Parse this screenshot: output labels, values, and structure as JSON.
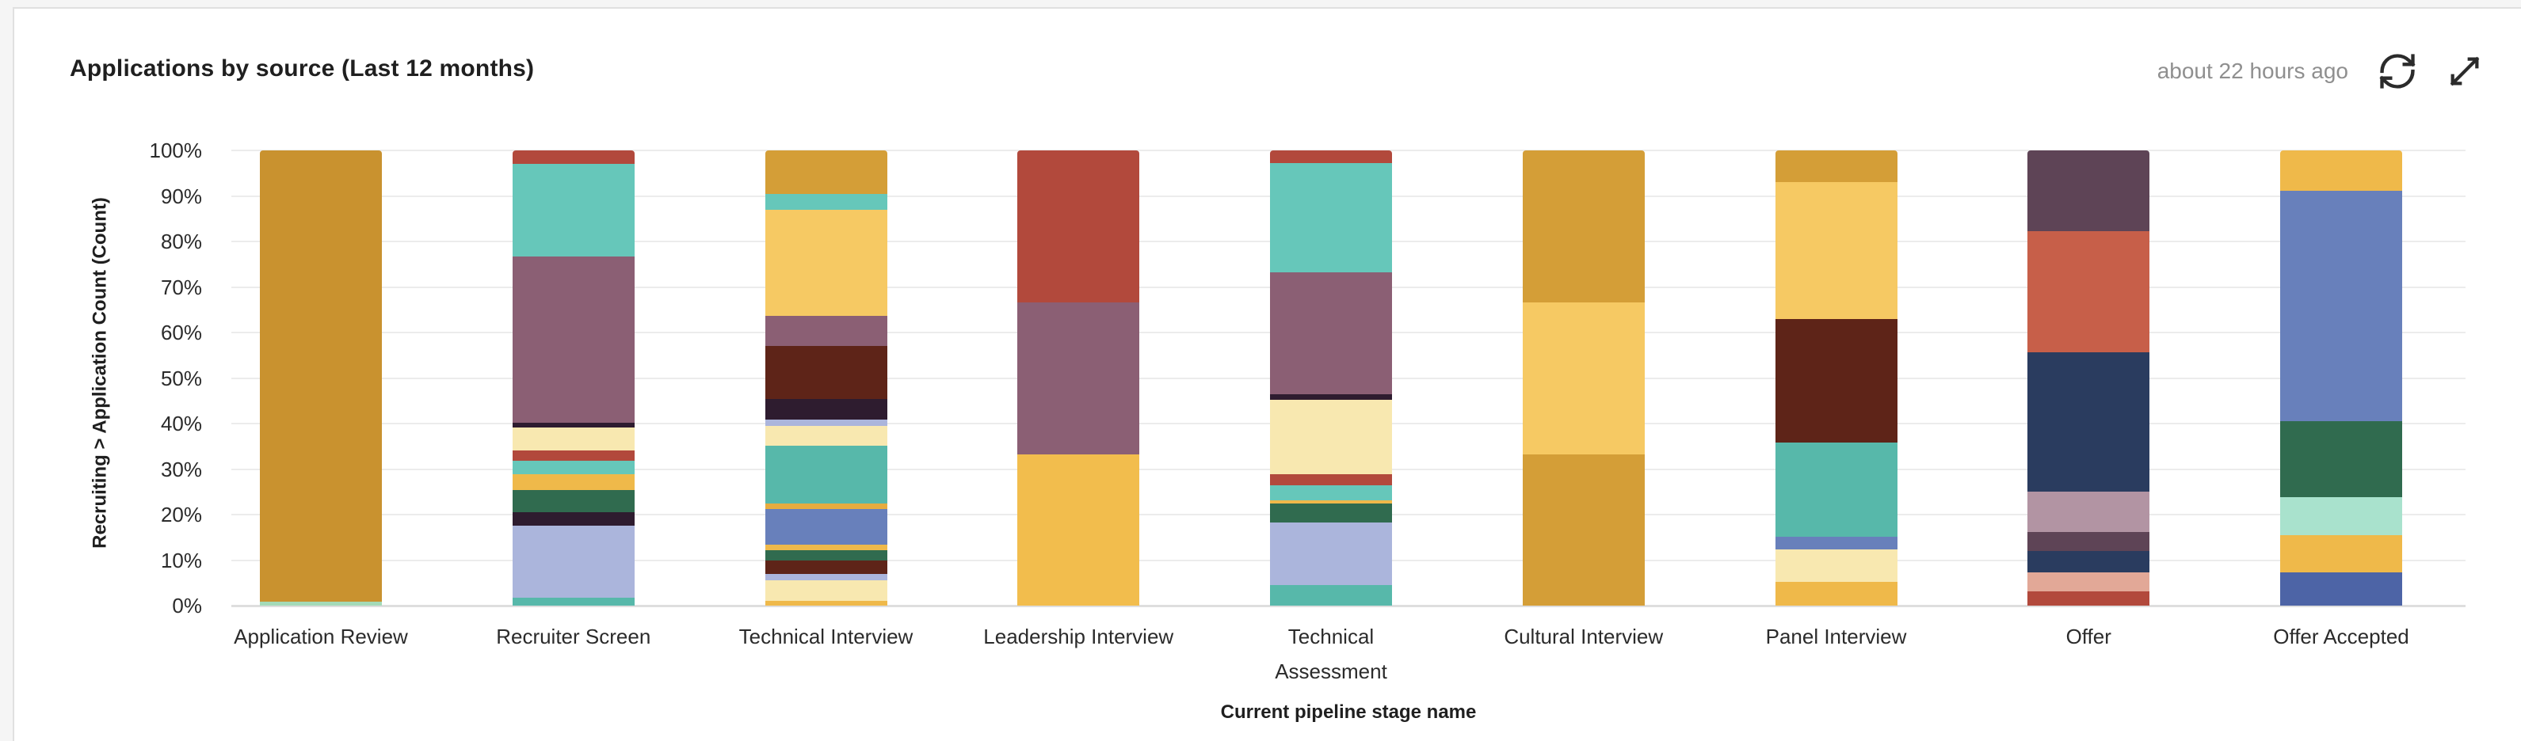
{
  "header": {
    "title": "Applications by source (Last 12 months)",
    "updated": "about 22 hours ago"
  },
  "icons": {
    "refresh": "refresh-icon",
    "expand": "expand-icon",
    "icon_color": "#2b2b2b"
  },
  "colors": {
    "card_background": "#ffffff",
    "page_background": "#f5f5f5",
    "card_border": "#e0e0e0",
    "gridline": "#ececec",
    "axis_baseline": "#dedede",
    "title_text": "#1f1f1f",
    "muted_text": "#8f8f8f",
    "tick_text": "#2b2b2b"
  },
  "chart_data": {
    "type": "bar",
    "variant": "stacked-percent",
    "title": "Applications by source (Last 12 months)",
    "xlabel": "Current pipeline stage name",
    "ylabel": "Recruiting > Application Count (Count)",
    "ylim": [
      0,
      100
    ],
    "yticks": [
      0,
      10,
      20,
      30,
      40,
      50,
      60,
      70,
      80,
      90,
      100
    ],
    "ytick_suffix": "%",
    "grid": true,
    "legend": "none",
    "segment_order": "top-to-bottom",
    "categories": [
      "Application Review",
      "Recruiter Screen",
      "Technical Interview",
      "Leadership Interview",
      "Technical Assessment",
      "Cultural Interview",
      "Panel Interview",
      "Offer",
      "Offer Accepted"
    ],
    "bars": [
      {
        "category": "Application Review",
        "segments": [
          {
            "color": "#C9922F",
            "pct": 99.2
          },
          {
            "color": "#A4DAB8",
            "pct": 0.8
          }
        ]
      },
      {
        "category": "Recruiter Screen",
        "segments": [
          {
            "color": "#B2493C",
            "pct": 3.0
          },
          {
            "color": "#66C7BA",
            "pct": 20.3
          },
          {
            "color": "#8B5F74",
            "pct": 36.5
          },
          {
            "color": "#2E1C2F",
            "pct": 1.0
          },
          {
            "color": "#F8E8B0",
            "pct": 5.2
          },
          {
            "color": "#B2493C",
            "pct": 2.1
          },
          {
            "color": "#66C7BA",
            "pct": 3.1
          },
          {
            "color": "#EFB94A",
            "pct": 3.4
          },
          {
            "color": "#306B4F",
            "pct": 4.8
          },
          {
            "color": "#2E1C2F",
            "pct": 3.1
          },
          {
            "color": "#ABB5DC",
            "pct": 15.8
          },
          {
            "color": "#57B8AA",
            "pct": 1.7
          }
        ]
      },
      {
        "category": "Technical Interview",
        "segments": [
          {
            "color": "#D49E37",
            "pct": 9.6
          },
          {
            "color": "#66C7BA",
            "pct": 3.4
          },
          {
            "color": "#F6C963",
            "pct": 23.3
          },
          {
            "color": "#8B5F74",
            "pct": 6.6
          },
          {
            "color": "#5E2418",
            "pct": 11.7
          },
          {
            "color": "#2E1C2F",
            "pct": 4.5
          },
          {
            "color": "#ABB5DC",
            "pct": 1.4
          },
          {
            "color": "#F8E8B0",
            "pct": 4.4
          },
          {
            "color": "#57B8AA",
            "pct": 12.7
          },
          {
            "color": "#E7AC3F",
            "pct": 1.2
          },
          {
            "color": "#6880BB",
            "pct": 7.8
          },
          {
            "color": "#EFB94A",
            "pct": 1.2
          },
          {
            "color": "#306B4F",
            "pct": 2.3
          },
          {
            "color": "#5E2418",
            "pct": 2.9
          },
          {
            "color": "#ABB5DC",
            "pct": 1.4
          },
          {
            "color": "#F8E8B0",
            "pct": 4.6
          },
          {
            "color": "#EFB94A",
            "pct": 1.0
          }
        ]
      },
      {
        "category": "Leadership Interview",
        "segments": [
          {
            "color": "#B2493C",
            "pct": 33.4
          },
          {
            "color": "#8B5F74",
            "pct": 33.3
          },
          {
            "color": "#F2BD4D",
            "pct": 33.3
          }
        ]
      },
      {
        "category": "Technical Assessment",
        "segments": [
          {
            "color": "#B2493C",
            "pct": 2.8
          },
          {
            "color": "#66C7BA",
            "pct": 24.0
          },
          {
            "color": "#8B5F74",
            "pct": 26.8
          },
          {
            "color": "#2E1C2F",
            "pct": 1.2
          },
          {
            "color": "#F8E8B0",
            "pct": 16.3
          },
          {
            "color": "#B2493C",
            "pct": 2.4
          },
          {
            "color": "#66C7BA",
            "pct": 3.3
          },
          {
            "color": "#EFB94A",
            "pct": 0.8
          },
          {
            "color": "#306B4F",
            "pct": 4.2
          },
          {
            "color": "#ABB5DC",
            "pct": 13.7
          },
          {
            "color": "#57B8AA",
            "pct": 4.5
          }
        ]
      },
      {
        "category": "Cultural Interview",
        "segments": [
          {
            "color": "#D49E37",
            "pct": 33.4
          },
          {
            "color": "#F6C963",
            "pct": 33.3
          },
          {
            "color": "#D49E37",
            "pct": 33.3
          }
        ]
      },
      {
        "category": "Panel Interview",
        "segments": [
          {
            "color": "#D49E37",
            "pct": 7.0
          },
          {
            "color": "#F6C963",
            "pct": 30.0
          },
          {
            "color": "#5E2418",
            "pct": 27.2
          },
          {
            "color": "#57B8AA",
            "pct": 20.7
          },
          {
            "color": "#6880BB",
            "pct": 2.8
          },
          {
            "color": "#F8E8B0",
            "pct": 7.1
          },
          {
            "color": "#EFB94A",
            "pct": 5.2
          }
        ]
      },
      {
        "category": "Offer",
        "segments": [
          {
            "color": "#5E4456",
            "pct": 17.8
          },
          {
            "color": "#C75F49",
            "pct": 26.5
          },
          {
            "color": "#2A3C5F",
            "pct": 30.6
          },
          {
            "color": "#B294A3",
            "pct": 8.9
          },
          {
            "color": "#5E4456",
            "pct": 4.2
          },
          {
            "color": "#2A3C5F",
            "pct": 4.7
          },
          {
            "color": "#E2A897",
            "pct": 4.2
          },
          {
            "color": "#B2493C",
            "pct": 3.1
          }
        ]
      },
      {
        "category": "Offer Accepted",
        "segments": [
          {
            "color": "#EFB94A",
            "pct": 8.9
          },
          {
            "color": "#6880BB",
            "pct": 50.6
          },
          {
            "color": "#306B4F",
            "pct": 16.7
          },
          {
            "color": "#A9E2CD",
            "pct": 8.3
          },
          {
            "color": "#EFB94A",
            "pct": 8.2
          },
          {
            "color": "#4D64A6",
            "pct": 7.3
          }
        ]
      }
    ]
  }
}
